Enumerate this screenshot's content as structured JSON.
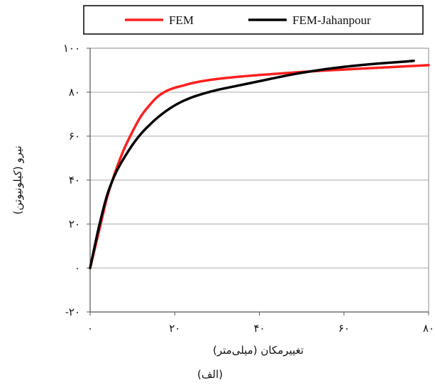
{
  "chart_data": {
    "type": "line",
    "title": "",
    "xlabel": "تغییرمکان (میلی‌متر)",
    "ylabel": "نیرو (کیلونیوتن)",
    "caption": "(الف)",
    "xlim": [
      0,
      80
    ],
    "ylim": [
      -20,
      100
    ],
    "x_ticks": [
      0,
      20,
      40,
      60,
      80
    ],
    "x_tick_labels": [
      "۰",
      "۲۰",
      "۴۰",
      "۶۰",
      "۸۰"
    ],
    "y_ticks": [
      -20,
      0,
      20,
      40,
      60,
      80,
      100
    ],
    "y_tick_labels": [
      "-۲۰",
      "۰",
      "۲۰",
      "۴۰",
      "۶۰",
      "۸۰",
      "۱۰۰"
    ],
    "grid": "horizontal",
    "legend_position": "top",
    "series": [
      {
        "name": "FEM",
        "color": "#ff2020",
        "x": [
          0,
          2,
          4,
          6,
          8,
          10,
          12,
          14,
          16,
          18,
          20,
          22,
          25,
          30,
          35,
          40,
          45,
          50,
          55,
          60,
          65,
          70,
          75,
          80
        ],
        "y": [
          0,
          16,
          32,
          44,
          54,
          62,
          69,
          74,
          78,
          80.5,
          82,
          83,
          84.5,
          86,
          87,
          87.8,
          88.5,
          89.2,
          89.8,
          90.3,
          90.8,
          91.3,
          91.8,
          92.3
        ]
      },
      {
        "name": "FEM-Jahanpour",
        "color": "#000000",
        "x": [
          0,
          2,
          4,
          6,
          8,
          10,
          12,
          14,
          16,
          18,
          20,
          22,
          25,
          30,
          35,
          40,
          45,
          50,
          55,
          60,
          65,
          70,
          75,
          76.5
        ],
        "y": [
          0,
          18,
          33,
          43,
          50,
          56,
          61,
          65,
          68.5,
          71.5,
          74,
          76,
          78.3,
          81,
          83,
          85,
          87,
          88.8,
          90.3,
          91.5,
          92.5,
          93.3,
          94,
          94.3
        ]
      }
    ]
  }
}
